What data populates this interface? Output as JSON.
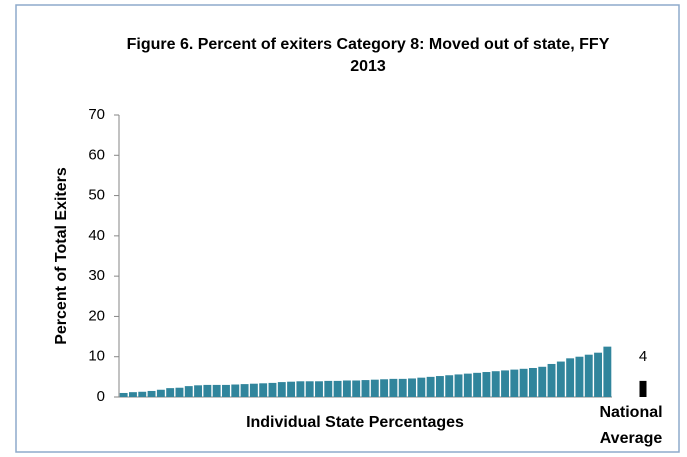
{
  "chart_data": {
    "type": "bar",
    "title": "Figure 6. Percent of exiters Category 8: Moved out of state, FFY 2013",
    "y_label": "Percent of Total Exiters",
    "x_label": "Individual State Percentages",
    "categories": [
      null,
      null,
      null,
      null,
      null,
      null,
      null,
      null,
      null,
      null,
      null,
      null,
      null,
      null,
      null,
      null,
      null,
      null,
      null,
      null,
      null,
      null,
      null,
      null,
      null,
      null,
      null,
      null,
      null,
      null,
      null,
      null,
      null,
      null,
      null,
      null,
      null,
      null,
      null,
      null,
      null,
      null,
      null,
      null,
      null,
      null,
      null,
      null,
      null,
      null,
      null,
      null,
      null
    ],
    "values": [
      1.0,
      1.2,
      1.3,
      1.5,
      1.8,
      2.2,
      2.3,
      2.7,
      2.9,
      3.0,
      3.0,
      3.0,
      3.1,
      3.2,
      3.3,
      3.4,
      3.5,
      3.7,
      3.8,
      3.9,
      3.9,
      3.9,
      4.0,
      4.0,
      4.1,
      4.1,
      4.2,
      4.3,
      4.4,
      4.5,
      4.5,
      4.6,
      4.8,
      5.0,
      5.2,
      5.4,
      5.6,
      5.8,
      6.0,
      6.2,
      6.4,
      6.6,
      6.8,
      7.0,
      7.2,
      7.5,
      8.2,
      8.8,
      9.6,
      10.0,
      10.5,
      11.0,
      12.5
    ],
    "color": "#31859c",
    "national_average": {
      "label": "National Average",
      "value": 4,
      "color": "#000000"
    },
    "ylim": [
      0,
      70
    ],
    "yticks": [
      0,
      10,
      20,
      30,
      40,
      50,
      60,
      70
    ]
  }
}
